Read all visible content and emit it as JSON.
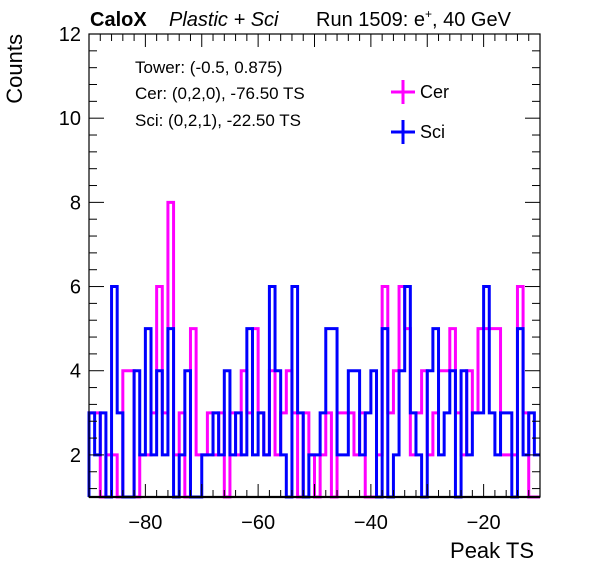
{
  "header": {
    "brand": "CaloX",
    "config": "Plastic + Sci",
    "run_prefix": "Run 1509: e",
    "run_sup": "+",
    "run_suffix": ", 40 GeV"
  },
  "info": {
    "tower": "Tower: (-0.5, 0.875)",
    "cer": "Cer: (0,2,0), -76.50 TS",
    "sci": "Sci: (0,2,1), -22.50 TS"
  },
  "chart_data": {
    "type": "histogram",
    "xlabel": "Peak TS",
    "ylabel": "Counts",
    "xlim": [
      -90,
      -10
    ],
    "ylim": [
      1,
      12
    ],
    "bin_width": 1,
    "x_ticks": [
      -80,
      -60,
      -40,
      -20
    ],
    "x_tick_labels": [
      "−80",
      "−60",
      "−40",
      "−20"
    ],
    "y_ticks": [
      2,
      4,
      6,
      8,
      10,
      12
    ],
    "legend_position": "top-right",
    "series": [
      {
        "name": "Cer",
        "color": "#ff00ff",
        "bin_start": -90,
        "values": [
          3,
          3,
          1,
          2,
          2,
          1,
          4,
          4,
          1,
          2,
          2,
          3,
          6,
          3,
          8,
          2,
          3,
          1,
          5,
          2,
          2,
          3,
          2,
          3,
          1,
          3,
          2,
          4,
          3,
          5,
          3,
          2,
          4,
          2,
          3,
          4,
          3,
          1,
          3,
          2,
          1,
          2,
          3,
          1,
          3,
          3,
          3,
          2,
          3,
          1,
          1,
          2,
          6,
          3,
          4,
          6,
          5,
          2,
          3,
          4,
          2,
          3,
          4,
          4,
          5,
          3,
          2,
          4,
          3,
          5,
          5,
          5,
          5,
          2,
          2,
          2,
          6,
          3,
          1,
          1
        ]
      },
      {
        "name": "Sci",
        "color": "#0000ff",
        "bin_start": -90,
        "values": [
          3,
          2,
          3,
          1,
          6,
          3,
          1,
          1,
          4,
          2,
          5,
          2,
          4,
          2,
          5,
          1,
          2,
          4,
          1,
          1,
          2,
          2,
          3,
          2,
          4,
          2,
          3,
          2,
          5,
          2,
          3,
          2,
          6,
          4,
          2,
          1,
          6,
          3,
          1,
          2,
          2,
          3,
          5,
          5,
          2,
          2,
          4,
          4,
          2,
          3,
          4,
          1,
          5,
          1,
          2,
          4,
          6,
          3,
          2,
          1,
          4,
          5,
          2,
          3,
          4,
          1,
          4,
          2,
          3,
          3,
          6,
          3,
          2,
          3,
          3,
          1,
          5,
          2,
          3,
          2
        ]
      }
    ]
  }
}
